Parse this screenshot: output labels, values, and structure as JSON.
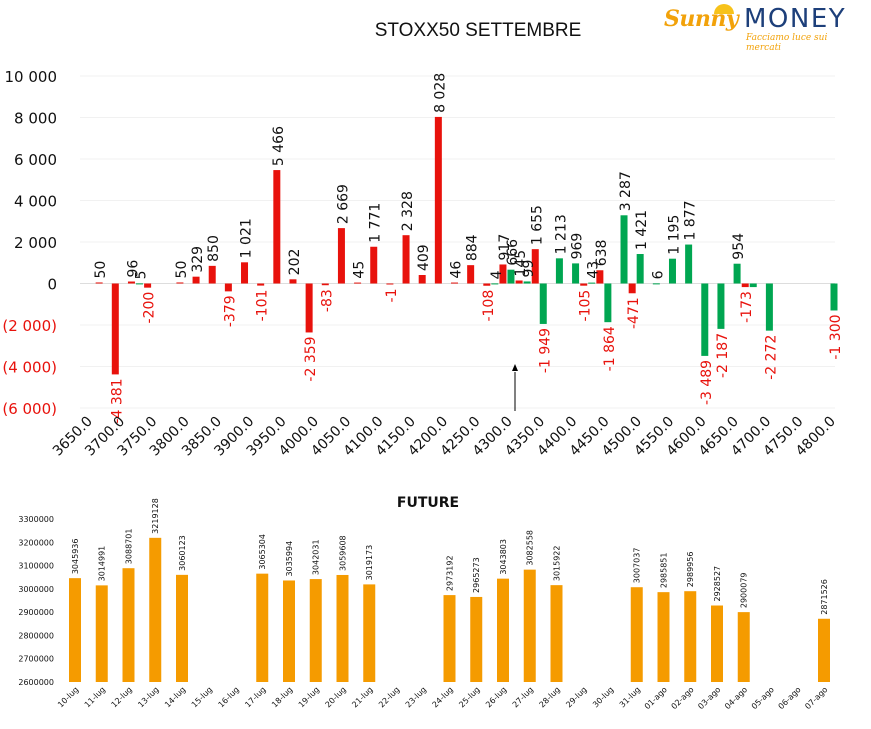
{
  "brand": {
    "name_part1": "Sunny",
    "name_part2": "MONEY",
    "tagline": "Facciamo luce sui mercati"
  },
  "colors": {
    "positive": "#e8120c",
    "negative": "#00a651",
    "future": "#f59b00",
    "neg_label": "#e8120c"
  },
  "chart_data": [
    {
      "type": "bar",
      "title": "STOXX50 SETTEMBRE",
      "categories": [
        "3650.0",
        "3675.0",
        "3700.0",
        "3725.0",
        "3750.0",
        "3775.0",
        "3800.0",
        "3825.0",
        "3850.0",
        "3875.0",
        "3900.0",
        "3925.0",
        "3950.0",
        "3975.0",
        "4000.0",
        "4025.0",
        "4050.0",
        "4075.0",
        "4100.0",
        "4125.0",
        "4150.0",
        "4175.0",
        "4200.0",
        "4225.0",
        "4250.0",
        "4275.0",
        "4300.0",
        "4325.0",
        "4350.0",
        "4375.0",
        "4400.0",
        "4425.0",
        "4450.0",
        "4475.0",
        "4500.0",
        "4525.0",
        "4550.0",
        "4575.0",
        "4600.0",
        "4625.0",
        "4650.0",
        "4675.0",
        "4700.0",
        "4725.0",
        "4750.0",
        "4775.0",
        "4800.0"
      ],
      "x_tick_labels": [
        "3650.0",
        "3700.0",
        "3750.0",
        "3800.0",
        "3850.0",
        "3900.0",
        "3950.0",
        "4000.0",
        "4050.0",
        "4100.0",
        "4150.0",
        "4200.0",
        "4250.0",
        "4300.0",
        "4350.0",
        "4400.0",
        "4450.0",
        "4500.0",
        "4550.0",
        "4600.0",
        "4650.0",
        "4700.0",
        "4750.0",
        "4800.0"
      ],
      "y_tick_labels": [
        "10 000",
        "8 000",
        "6 000",
        "4 000",
        "2 000",
        "0",
        "(2 000)",
        "(4 000)",
        "(6 000)"
      ],
      "ylim": [
        -6000,
        10000
      ],
      "series": [
        {
          "values": [
            null,
            50,
            -4381,
            96,
            -200,
            null,
            50,
            329,
            850,
            -379,
            1021,
            -101,
            5466,
            202,
            -2359,
            -83,
            2669,
            45,
            1771,
            -1,
            2328,
            409,
            8028,
            46,
            884,
            -108,
            917,
            145,
            1655,
            null,
            null,
            -105,
            638,
            null,
            -471,
            null,
            null,
            null,
            null,
            null,
            null,
            -173,
            null,
            null,
            null,
            null,
            null
          ],
          "labels": [
            "",
            "50",
            "-4 381",
            "96",
            "-200",
            "",
            "50",
            "329",
            "850",
            "-379",
            "1 021",
            "-101",
            "5 466",
            "202",
            "-2 359",
            "-83",
            "2 669",
            "45",
            "1 771",
            "-1",
            "2 328",
            "409",
            "8 028",
            "46",
            "884",
            "-108",
            "917",
            "145",
            "1 655",
            "",
            "",
            "-105",
            "638",
            "",
            "-471",
            "",
            "",
            "",
            "",
            "",
            "",
            "-173",
            "",
            "",
            "",
            "",
            ""
          ]
        },
        {
          "values": [
            null,
            null,
            null,
            5,
            null,
            null,
            null,
            null,
            null,
            null,
            null,
            null,
            null,
            null,
            null,
            null,
            null,
            null,
            null,
            null,
            null,
            null,
            null,
            null,
            null,
            4,
            666,
            99,
            -1949,
            1213,
            969,
            43,
            -1864,
            3287,
            1421,
            6,
            1195,
            1877,
            -3489,
            -2187,
            954,
            -173,
            -2272,
            null,
            null,
            null,
            -1300
          ],
          "labels": [
            "",
            "",
            "",
            "5",
            "",
            "",
            "",
            "",
            "",
            "",
            "",
            "",
            "",
            "",
            "",
            "",
            "",
            "",
            "",
            "",
            "",
            "",
            "",
            "",
            "",
            "4",
            "666",
            "99",
            "-1 949",
            "1 213",
            "969",
            "43",
            "-1 864",
            "3 287",
            "1 421",
            "6",
            "1 195",
            "1 877",
            "-3 489",
            "-2 187",
            "954",
            "",
            "-2 272",
            "",
            "",
            "",
            "-1 300"
          ]
        }
      ],
      "annotations": [
        "arrow"
      ],
      "grid": true
    },
    {
      "type": "bar",
      "title": "FUTURE",
      "categories": [
        "10-lug",
        "11-lug",
        "12-lug",
        "13-lug",
        "14-lug",
        "15-lug",
        "16-lug",
        "17-lug",
        "18-lug",
        "19-lug",
        "20-lug",
        "21-lug",
        "22-lug",
        "23-lug",
        "24-lug",
        "25-lug",
        "26-lug",
        "27-lug",
        "28-lug",
        "29-lug",
        "30-lug",
        "31-lug",
        "01-ago",
        "02-ago",
        "03-ago",
        "04-ago",
        "05-ago",
        "06-ago",
        "07-ago"
      ],
      "values": [
        3045936,
        3014991,
        3088701,
        3219128,
        3060123,
        null,
        null,
        3065304,
        3035994,
        3042031,
        3059608,
        3019173,
        null,
        null,
        2973192,
        2965273,
        3043803,
        3082558,
        3015922,
        null,
        null,
        3007037,
        2985851,
        2989956,
        2928527,
        2900079,
        null,
        null,
        2871526
      ],
      "y_tick_labels": [
        "3300000",
        "3200000",
        "3100000",
        "3000000",
        "2900000",
        "2800000",
        "2700000",
        "2600000"
      ],
      "ylim": [
        2600000,
        3300000
      ]
    }
  ]
}
